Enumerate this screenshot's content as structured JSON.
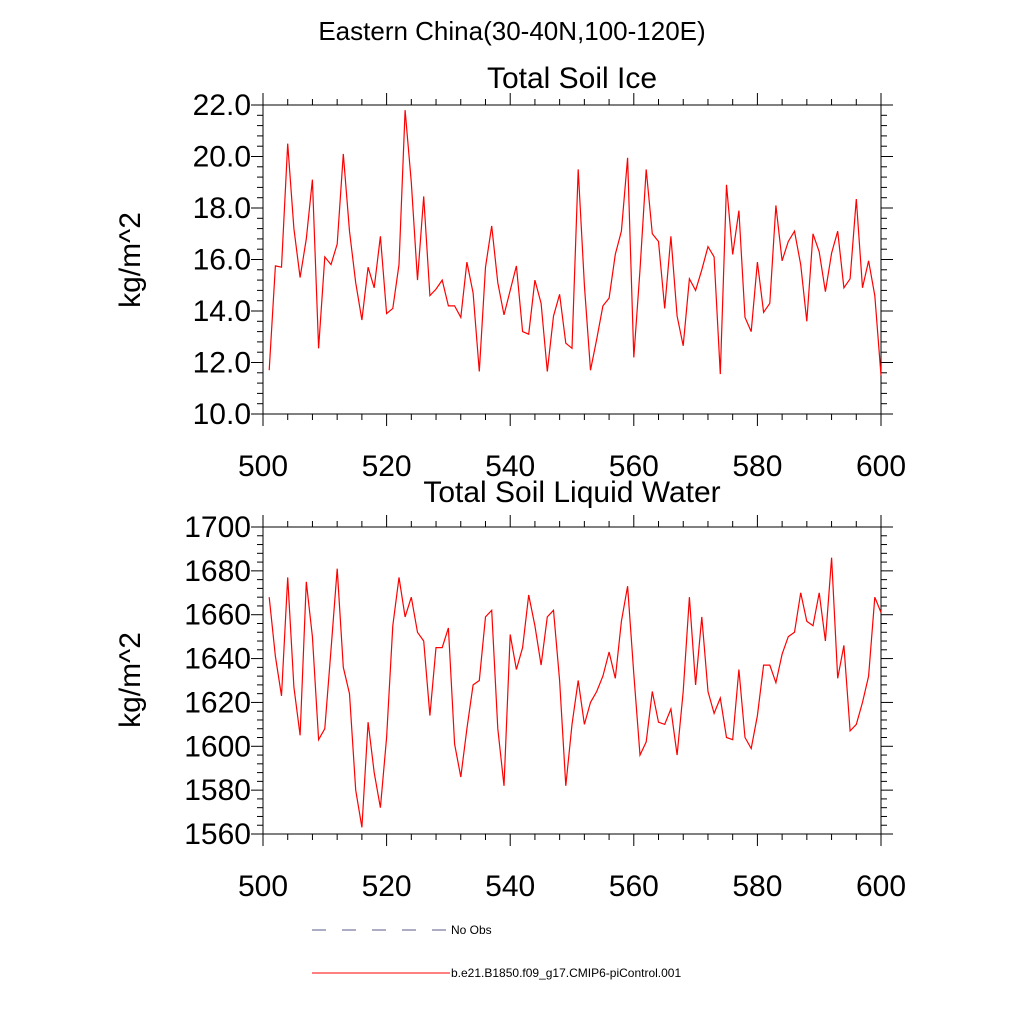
{
  "figure": {
    "title": "Eastern China(30-40N,100-120E)"
  },
  "chart_data": [
    {
      "type": "line",
      "title": "Total Soil Ice",
      "xlabel": "",
      "ylabel": "kg/m^2",
      "xlim": [
        500,
        600
      ],
      "ylim": [
        10,
        22
      ],
      "x_ticks": [
        500,
        520,
        540,
        560,
        580,
        600
      ],
      "x_tick_labels": [
        "500",
        "520",
        "540",
        "560",
        "580",
        "600"
      ],
      "y_ticks": [
        10,
        12,
        14,
        16,
        18,
        20,
        22
      ],
      "y_tick_labels": [
        "10.0",
        "12.0",
        "14.0",
        "16.0",
        "18.0",
        "20.0",
        "22.0"
      ],
      "grid": false,
      "x": [
        501,
        502,
        503,
        504,
        505,
        506,
        507,
        508,
        509,
        510,
        511,
        512,
        513,
        514,
        515,
        516,
        517,
        518,
        519,
        520,
        521,
        522,
        523,
        524,
        525,
        526,
        527,
        528,
        529,
        530,
        531,
        532,
        533,
        534,
        535,
        536,
        537,
        538,
        539,
        540,
        541,
        542,
        543,
        544,
        545,
        546,
        547,
        548,
        549,
        550,
        551,
        552,
        553,
        554,
        555,
        556,
        557,
        558,
        559,
        560,
        561,
        562,
        563,
        564,
        565,
        566,
        567,
        568,
        569,
        570,
        571,
        572,
        573,
        574,
        575,
        576,
        577,
        578,
        579,
        580,
        581,
        582,
        583,
        584,
        585,
        586,
        587,
        588,
        589,
        590,
        591,
        592,
        593,
        594,
        595,
        596,
        597,
        598,
        599,
        600
      ],
      "series": [
        {
          "name": "b.e21.B1850.f09_g17.CMIP6-piControl.001",
          "color": "#ff0000",
          "values": [
            11.7,
            15.75,
            15.7,
            20.5,
            17.2,
            15.3,
            16.8,
            19.1,
            12.55,
            16.1,
            15.8,
            16.6,
            20.1,
            17.1,
            15.1,
            13.65,
            15.7,
            14.9,
            16.9,
            13.9,
            14.1,
            15.8,
            21.8,
            19.0,
            15.2,
            18.45,
            14.6,
            14.85,
            15.2,
            14.2,
            14.2,
            13.75,
            15.9,
            14.7,
            11.65,
            15.7,
            17.3,
            15.1,
            13.85,
            14.8,
            15.75,
            13.2,
            13.1,
            15.2,
            14.3,
            11.65,
            13.8,
            14.65,
            12.75,
            12.55,
            19.5,
            15.0,
            11.7,
            12.9,
            14.2,
            14.5,
            16.2,
            17.1,
            19.95,
            12.2,
            15.6,
            19.5,
            17.0,
            16.7,
            14.1,
            16.9,
            13.8,
            12.65,
            15.25,
            14.8,
            15.6,
            16.5,
            16.1,
            11.55,
            18.9,
            16.2,
            17.9,
            13.75,
            13.2,
            15.9,
            13.95,
            14.3,
            18.1,
            15.95,
            16.7,
            17.1,
            15.8,
            13.6,
            17.0,
            16.3,
            14.75,
            16.25,
            17.1,
            14.9,
            15.25,
            18.35,
            14.9,
            15.95,
            14.6,
            11.5
          ]
        }
      ]
    },
    {
      "type": "line",
      "title": "Total Soil Liquid Water",
      "xlabel": "",
      "ylabel": "kg/m^2",
      "xlim": [
        500,
        600
      ],
      "ylim": [
        1560,
        1700
      ],
      "x_ticks": [
        500,
        520,
        540,
        560,
        580,
        600
      ],
      "x_tick_labels": [
        "500",
        "520",
        "540",
        "560",
        "580",
        "600"
      ],
      "y_ticks": [
        1560,
        1580,
        1600,
        1620,
        1640,
        1660,
        1680,
        1700
      ],
      "y_tick_labels": [
        "1560",
        "1580",
        "1600",
        "1620",
        "1640",
        "1660",
        "1680",
        "1700"
      ],
      "grid": false,
      "x": [
        501,
        502,
        503,
        504,
        505,
        506,
        507,
        508,
        509,
        510,
        511,
        512,
        513,
        514,
        515,
        516,
        517,
        518,
        519,
        520,
        521,
        522,
        523,
        524,
        525,
        526,
        527,
        528,
        529,
        530,
        531,
        532,
        533,
        534,
        535,
        536,
        537,
        538,
        539,
        540,
        541,
        542,
        543,
        544,
        545,
        546,
        547,
        548,
        549,
        550,
        551,
        552,
        553,
        554,
        555,
        556,
        557,
        558,
        559,
        560,
        561,
        562,
        563,
        564,
        565,
        566,
        567,
        568,
        569,
        570,
        571,
        572,
        573,
        574,
        575,
        576,
        577,
        578,
        579,
        580,
        581,
        582,
        583,
        584,
        585,
        586,
        587,
        588,
        589,
        590,
        591,
        592,
        593,
        594,
        595,
        596,
        597,
        598,
        599,
        600
      ],
      "series": [
        {
          "name": "b.e21.B1850.f09_g17.CMIP6-piControl.001",
          "color": "#ff0000",
          "values": [
            1668,
            1641,
            1623,
            1677,
            1627,
            1605,
            1675,
            1650,
            1603,
            1608,
            1644,
            1681,
            1636,
            1624,
            1580,
            1563,
            1611,
            1588,
            1572,
            1604,
            1655,
            1677,
            1659,
            1668,
            1652,
            1648,
            1614,
            1645,
            1645,
            1654,
            1601,
            1586,
            1608,
            1628,
            1630,
            1659,
            1662,
            1608,
            1582,
            1651,
            1635,
            1645,
            1669,
            1655,
            1637,
            1659,
            1662,
            1630,
            1582,
            1610,
            1630,
            1610,
            1620,
            1625,
            1632,
            1643,
            1631,
            1657,
            1673,
            1633,
            1596,
            1602,
            1625,
            1611,
            1610,
            1617,
            1596,
            1625,
            1668,
            1628,
            1659,
            1625,
            1615,
            1622,
            1604,
            1603,
            1635,
            1604,
            1599,
            1614,
            1637,
            1637,
            1629,
            1642,
            1650,
            1652,
            1670,
            1657,
            1655,
            1670,
            1648,
            1686,
            1631,
            1646,
            1607,
            1610,
            1620,
            1632,
            1668,
            1661
          ]
        }
      ]
    }
  ],
  "legend": {
    "placement": "bottom",
    "entries": [
      {
        "label": "No Obs",
        "style": "dashed",
        "color": "#5a5a8a"
      },
      {
        "label": "b.e21.B1850.f09_g17.CMIP6-piControl.001",
        "style": "solid",
        "color": "#ff0000"
      }
    ]
  }
}
